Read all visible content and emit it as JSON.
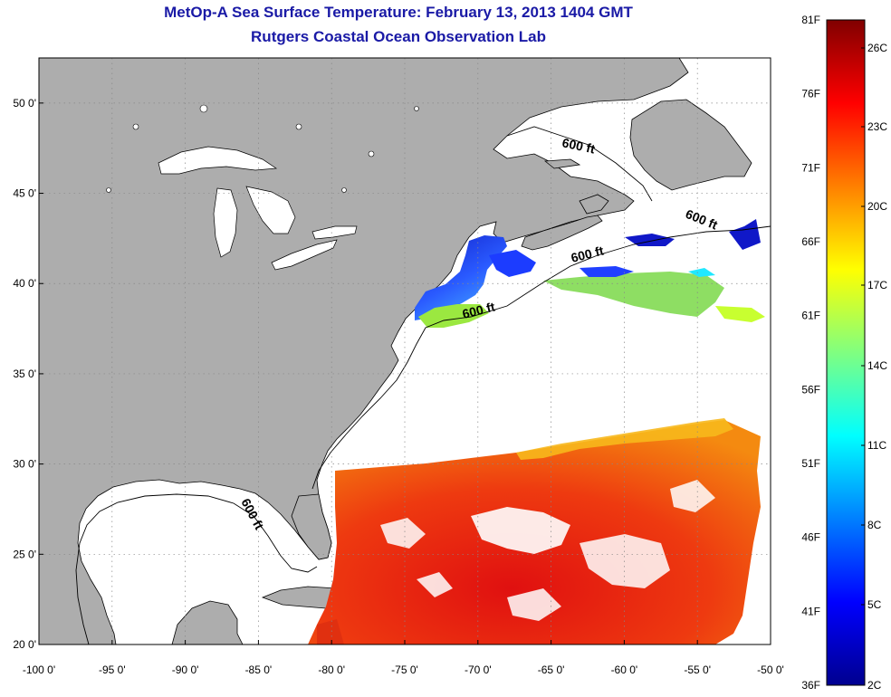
{
  "header": {
    "title": "MetOp-A Sea Surface Temperature:  February 13, 2013 1404 GMT",
    "subtitle": "Rutgers Coastal Ocean Observation Lab"
  },
  "map": {
    "lon_range": [
      -100,
      -50
    ],
    "lat_range": [
      20,
      52.5
    ],
    "lon_ticks": [
      {
        "value": -100,
        "label": "-100 0'"
      },
      {
        "value": -95,
        "label": "-95 0'"
      },
      {
        "value": -90,
        "label": "-90 0'"
      },
      {
        "value": -85,
        "label": "-85 0'"
      },
      {
        "value": -80,
        "label": "-80 0'"
      },
      {
        "value": -75,
        "label": "-75 0'"
      },
      {
        "value": -70,
        "label": "-70 0'"
      },
      {
        "value": -65,
        "label": "-65 0'"
      },
      {
        "value": -60,
        "label": "-60 0'"
      },
      {
        "value": -55,
        "label": "-55 0'"
      },
      {
        "value": -50,
        "label": "-50 0'"
      }
    ],
    "lat_ticks": [
      {
        "value": 50,
        "label": "50 0'"
      },
      {
        "value": 45,
        "label": "45 0'"
      },
      {
        "value": 40,
        "label": "40 0'"
      },
      {
        "value": 35,
        "label": "35 0'"
      },
      {
        "value": 30,
        "label": "30 0'"
      },
      {
        "value": 25,
        "label": "25 0'"
      },
      {
        "value": 20,
        "label": "20 0'"
      }
    ],
    "grid": "dotted",
    "colors": {
      "land": "#adadad",
      "ocean_no_data": "#ffffff",
      "coastline": "#000000"
    },
    "contour_labels": [
      "600 ft",
      "600 ft",
      "600 ft",
      "600 ft",
      "600 ft"
    ]
  },
  "colorbar": {
    "fahrenheit_labels": [
      "81F",
      "76F",
      "71F",
      "66F",
      "61F",
      "56F",
      "51F",
      "46F",
      "41F",
      "36F"
    ],
    "celsius_labels": [
      "26C",
      "23C",
      "20C",
      "17C",
      "14C",
      "11C",
      "8C",
      "5C",
      "2C"
    ],
    "colormap": [
      "#00008f",
      "#0000ff",
      "#00ffff",
      "#ffff00",
      "#ff0000",
      "#800000"
    ]
  }
}
